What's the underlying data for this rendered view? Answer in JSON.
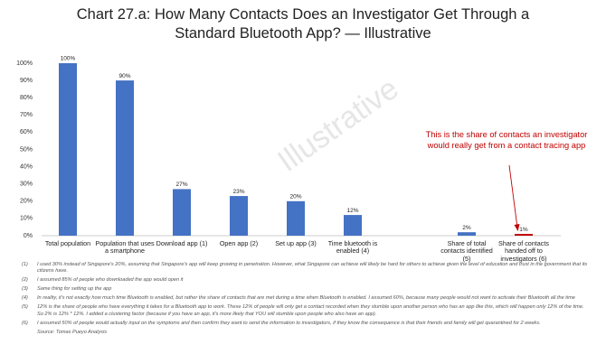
{
  "chart_data": {
    "type": "bar",
    "title": "Chart 27.a: How Many Contacts Does an Investigator Get Through a Standard Bluetooth App? — Illustrative",
    "watermark": "Illustrative",
    "categories": [
      "Total population",
      "Population that uses a smartphone",
      "Download app (1)",
      "Open app (2)",
      "Set up app (3)",
      "Time bluetooth is enabled (4)",
      null,
      "Share of total contacts identified (5)",
      "Share of contacts handed off to investigators (6)"
    ],
    "values": [
      100,
      90,
      27,
      23,
      20,
      12,
      null,
      2,
      1
    ],
    "value_labels": [
      "100%",
      "90%",
      "27%",
      "23%",
      "20%",
      "12%",
      null,
      "2%",
      "1%"
    ],
    "colors": [
      "#4472c4",
      "#4472c4",
      "#4472c4",
      "#4472c4",
      "#4472c4",
      "#4472c4",
      null,
      "#4472c4",
      "#c00000"
    ],
    "ylim": [
      0,
      100
    ],
    "yticks": [
      {
        "value": 0,
        "label": "0%"
      },
      {
        "value": 10,
        "label": "10%"
      },
      {
        "value": 20,
        "label": "20%"
      },
      {
        "value": 30,
        "label": "30%"
      },
      {
        "value": 40,
        "label": "40%"
      },
      {
        "value": 50,
        "label": "50%"
      },
      {
        "value": 60,
        "label": "60%"
      },
      {
        "value": 70,
        "label": "70%"
      },
      {
        "value": 80,
        "label": "80%"
      },
      {
        "value": 90,
        "label": "90%"
      },
      {
        "value": 100,
        "label": "100%"
      }
    ],
    "grid": false,
    "annotation": {
      "text": "This is the share of contacts an investigator would really get from a contact tracing app",
      "color": "#c00000"
    },
    "footnotes": [
      {
        "marker": "(1)",
        "text": "I used 30% instead of Singapore's 20%, assuming that Singapore's app will keep growing in penetration. However, what Singapore can achieve will likely be hard for others to achieve given the level of education and trust in the government that its citizens have."
      },
      {
        "marker": "(2)",
        "text": "I assumed 85% of people who downloaded the app would open it"
      },
      {
        "marker": "(3)",
        "text": "Same thing for setting up the app"
      },
      {
        "marker": "(4)",
        "text": "In reality, it's not exactly how much time Bluetooth is enabled, but rather the share of contacts that are met during a time when Bluetooth is enabled. I assumed 60%, because many people would not want to activate their Bluetooth all the time"
      },
      {
        "marker": "(5)",
        "text": "12% is the share of people who have everything it takes for a Bluetooth app to work. These 12% of people will only get a contact recorded when they stumble upon another person who has an app like this, which will happen only 12% of the time. So 2% is 12% * 12%. I added a clustering factor (because if you have an app, it's more likely that YOU will stumble upon people who also have an app)."
      },
      {
        "marker": "(6)",
        "text": "I assumed 50% of people would actually input on the symptoms and then confirm they want to send the information to investigators, if they know the consequence is that their friends and family will get quarantined for 2 weeks."
      }
    ],
    "source": "Source: Tomas Pueyo Analysis"
  }
}
